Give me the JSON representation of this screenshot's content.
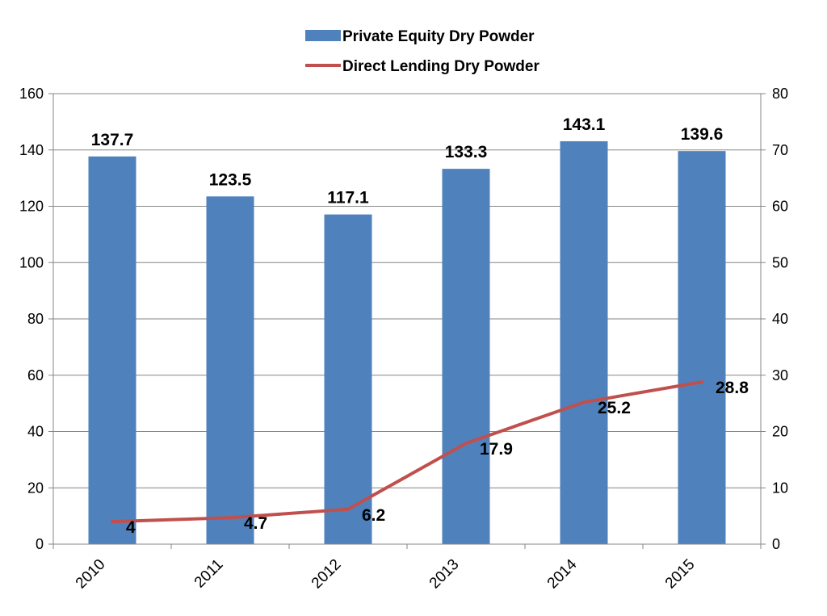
{
  "chart_data": {
    "type": "bar",
    "categories": [
      "2010",
      "2011",
      "2012",
      "2013",
      "2014",
      "2015"
    ],
    "series": [
      {
        "name": "Private Equity Dry Powder",
        "type": "bar",
        "axis": "left",
        "values": [
          137.7,
          123.5,
          117.1,
          133.3,
          143.1,
          139.6
        ],
        "color": "#4F81BD"
      },
      {
        "name": "Direct Lending Dry Powder",
        "type": "line",
        "axis": "right",
        "values": [
          4,
          4.7,
          6.2,
          17.9,
          25.2,
          28.8
        ],
        "color": "#C0504D"
      }
    ],
    "left_axis": {
      "ylim": [
        0,
        160
      ],
      "ticks": [
        "0",
        "20",
        "40",
        "60",
        "80",
        "100",
        "120",
        "140",
        "160"
      ]
    },
    "right_axis": {
      "ylim": [
        0,
        80
      ],
      "ticks": [
        "0",
        "10",
        "20",
        "30",
        "40",
        "50",
        "60",
        "70",
        "80"
      ]
    },
    "legend_position": "top-center",
    "grid": true,
    "grid_color": "#868686",
    "axis_color": "#868686"
  }
}
